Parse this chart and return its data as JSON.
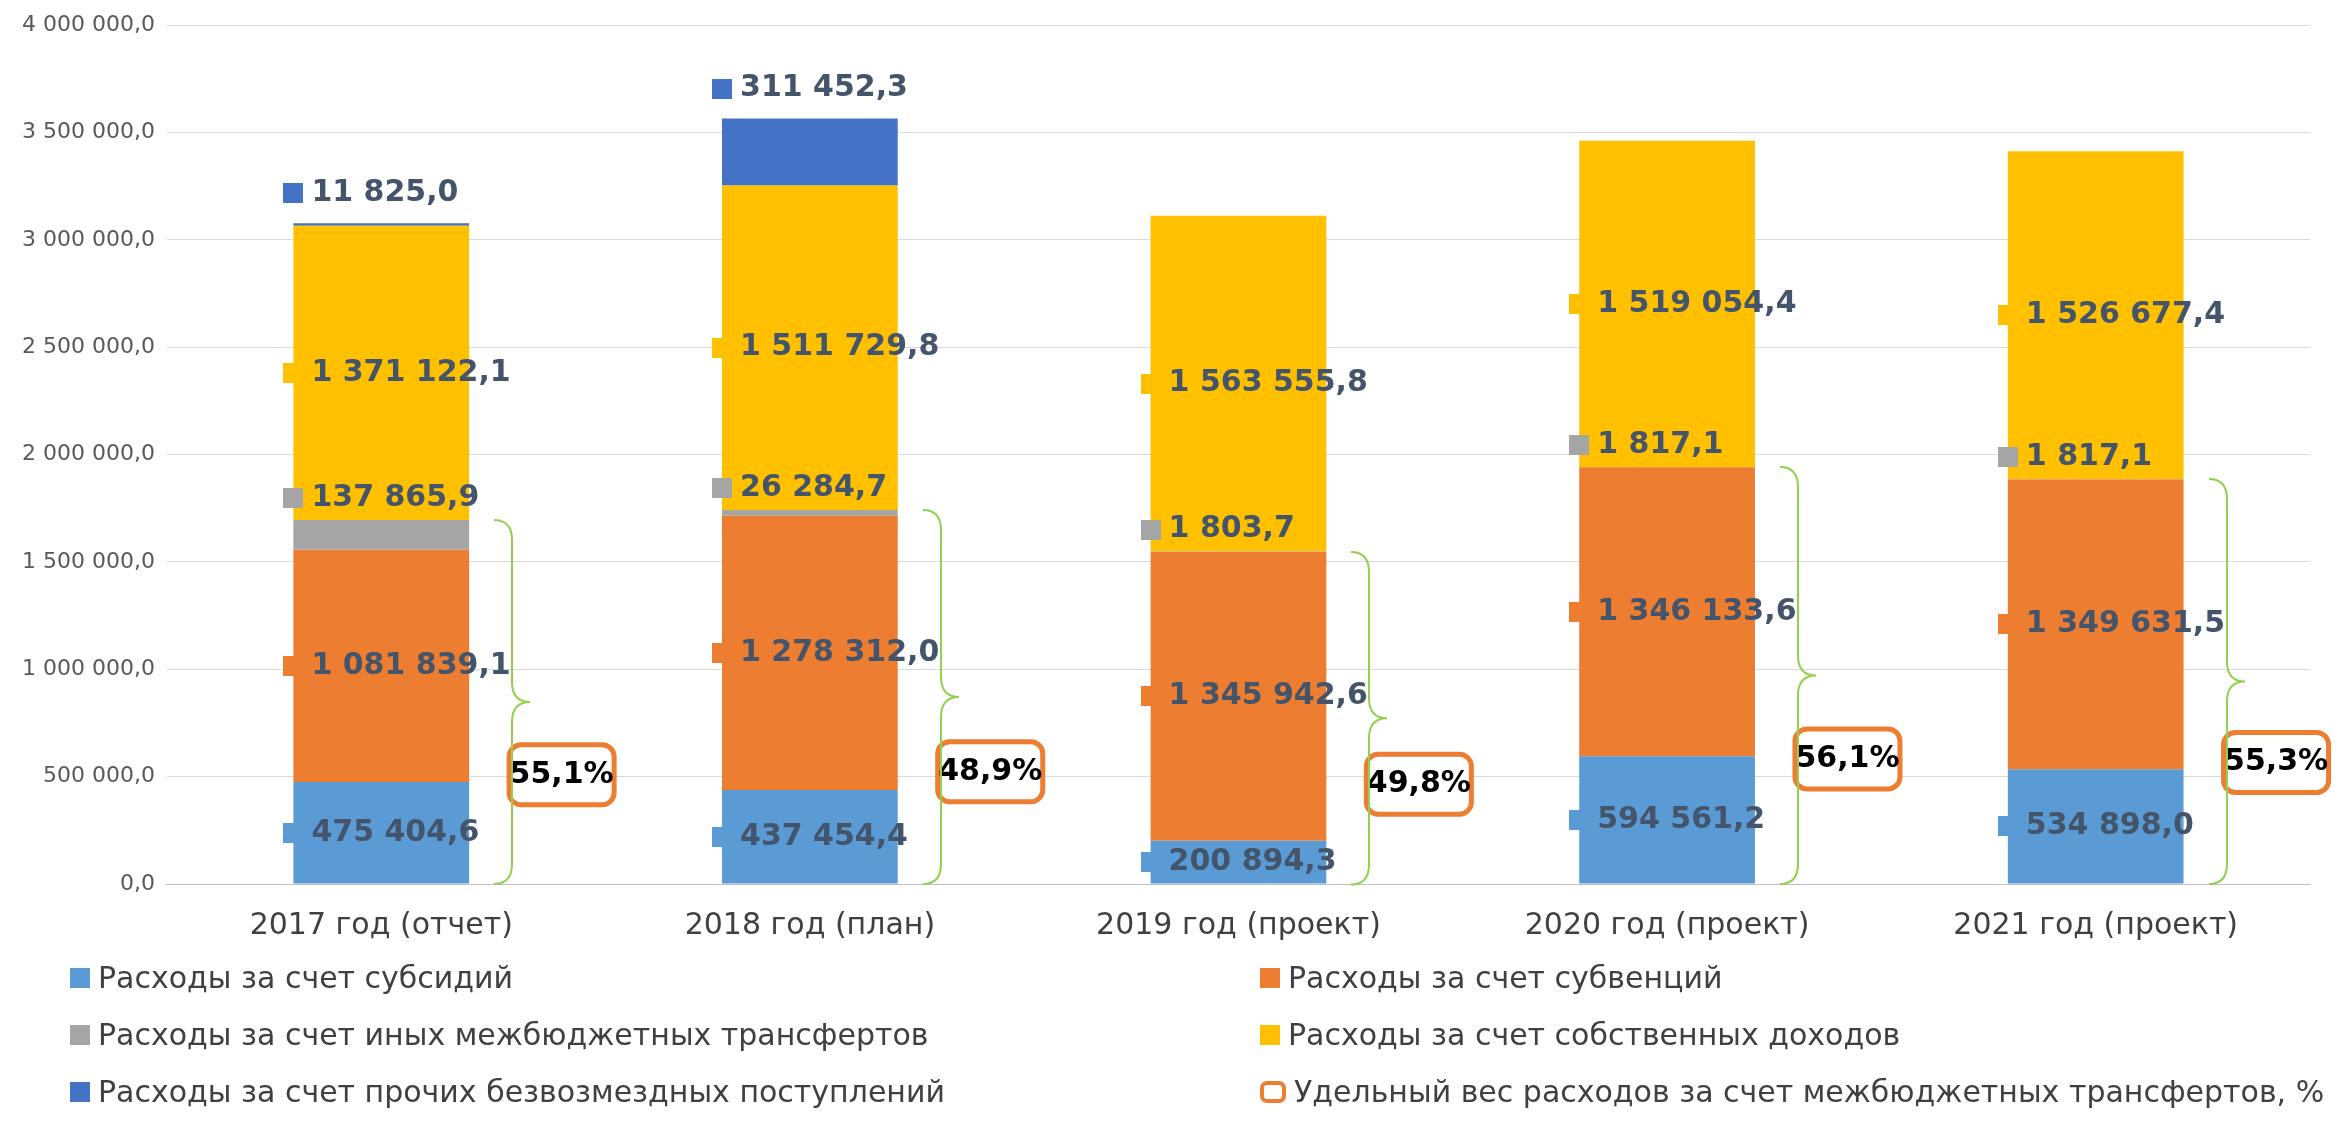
{
  "chart_data": {
    "type": "bar",
    "stacked": true,
    "categories": [
      "2017 год (отчет)",
      "2018 год (план)",
      "2019 год (проект)",
      "2020 год (проект)",
      "2021 год (проект)"
    ],
    "series": [
      {
        "name": "Расходы за счет субсидий",
        "color": "#5b9bd5",
        "values": [
          475404.6,
          437454.4,
          200894.3,
          594561.2,
          534898.0
        ],
        "value_labels": [
          "475 404,6",
          "437 454,4",
          "200 894,3",
          "594 561,2",
          "534 898,0"
        ]
      },
      {
        "name": "Расходы за счет субвенций",
        "color": "#ed7d31",
        "values": [
          1081839.1,
          1278312.0,
          1345942.6,
          1346133.6,
          1349631.5
        ],
        "value_labels": [
          "1 081 839,1",
          "1 278 312,0",
          "1 345 942,6",
          "1 346 133,6",
          "1 349 631,5"
        ]
      },
      {
        "name": "Расходы за счет иных межбюджетных трансфертов",
        "color": "#a5a5a5",
        "values": [
          137865.9,
          26284.7,
          1803.7,
          1817.1,
          1817.1
        ],
        "value_labels": [
          "137 865,9",
          "26 284,7",
          "1 803,7",
          "1 817,1",
          "1 817,1"
        ]
      },
      {
        "name": "Расходы за счет собственных доходов",
        "color": "#ffc000",
        "values": [
          1371122.1,
          1511729.8,
          1563555.8,
          1519054.4,
          1526677.4
        ],
        "value_labels": [
          "1 371 122,1",
          "1 511 729,8",
          "1 563 555,8",
          "1 519 054,4",
          "1 526 677,4"
        ]
      },
      {
        "name": "Расходы за счет прочих безвозмездных поступлений",
        "color": "#4472c4",
        "values": [
          11825.0,
          311452.3,
          null,
          null,
          null
        ],
        "value_labels": [
          "11 825,0",
          "311 452,3",
          null,
          null,
          null
        ]
      }
    ],
    "ylim": [
      0,
      4000000
    ],
    "yticks": [
      {
        "value": 0,
        "label": "0,0"
      },
      {
        "value": 500000,
        "label": "500 000,0"
      },
      {
        "value": 1000000,
        "label": "1 000 000,0"
      },
      {
        "value": 1500000,
        "label": "1 500 000,0"
      },
      {
        "value": 2000000,
        "label": "2 000 000,0"
      },
      {
        "value": 2500000,
        "label": "2 500 000,0"
      },
      {
        "value": 3000000,
        "label": "3 000 000,0"
      },
      {
        "value": 3500000,
        "label": "3 500 000,0"
      },
      {
        "value": 4000000,
        "label": "4 000 000,0"
      }
    ],
    "grid": "y",
    "legend": "bottom",
    "annotations": [
      "55,1%",
      "48,9%",
      "49,8%",
      "56,1%",
      "55,3%",
      "Удельный вес расходов за счет межбюджетных трансфертов, %"
    ]
  }
}
